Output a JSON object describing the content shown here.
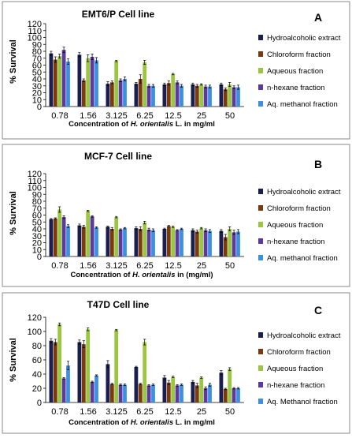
{
  "chart_data": [
    {
      "type": "bar",
      "title": "EMT6/P Cell line",
      "panel_label": "A",
      "ylabel": "% Survival",
      "xlabel_parts": [
        "Concentration of ",
        "H. orientalis",
        " L. in mg/ml"
      ],
      "ylim": [
        0,
        120
      ],
      "yticks": [
        0,
        10,
        20,
        30,
        40,
        50,
        60,
        70,
        80,
        90,
        100,
        110,
        120
      ],
      "grid": false,
      "legend_position": "right",
      "categories": [
        "0.78",
        "1.56",
        "3.125",
        "6.25",
        "12.5",
        "25",
        "50"
      ],
      "series": [
        {
          "name": "Hydroalcoholic extract",
          "color": "#1a1f4f",
          "values": [
            77,
            75,
            33,
            33,
            32,
            32,
            32
          ],
          "errors": [
            3,
            3,
            3,
            2,
            2,
            2,
            2
          ]
        },
        {
          "name": "Chloroform fraction",
          "color": "#7a3a10",
          "values": [
            68,
            38,
            35,
            40,
            34,
            30,
            25
          ],
          "errors": [
            4,
            2,
            2,
            6,
            3,
            2,
            2
          ]
        },
        {
          "name": "Aqueous fraction",
          "color": "#9ac641",
          "values": [
            73,
            70,
            66,
            64,
            47,
            32,
            32
          ],
          "errors": [
            3,
            5,
            1,
            3,
            1,
            1,
            3
          ]
        },
        {
          "name": "n-hexane fraction",
          "color": "#5b3a9e",
          "values": [
            82,
            72,
            38,
            30,
            35,
            29,
            28
          ],
          "errors": [
            4,
            4,
            2,
            2,
            2,
            2,
            2
          ]
        },
        {
          "name": "Aq. methanol fraction",
          "color": "#3d8fe0",
          "values": [
            65,
            67,
            40,
            30,
            30,
            29,
            28
          ],
          "errors": [
            4,
            4,
            3,
            2,
            2,
            2,
            3
          ]
        }
      ]
    },
    {
      "type": "bar",
      "title": "MCF-7 Cell line",
      "panel_label": "B",
      "ylabel": "% Survival",
      "xlabel_parts": [
        "Concentration of ",
        "H. orientalis",
        " in (mg/ml)"
      ],
      "ylim": [
        0,
        120
      ],
      "yticks": [
        0,
        10,
        20,
        30,
        40,
        50,
        60,
        70,
        80,
        90,
        100,
        110,
        120
      ],
      "grid": false,
      "legend_position": "right",
      "categories": [
        "0.78",
        "1.56",
        "3.125",
        "6.25",
        "12.5",
        "25",
        "50"
      ],
      "series": [
        {
          "name": "Hydroalcoholic extract",
          "color": "#1a1f4f",
          "values": [
            54,
            45,
            43,
            41,
            40,
            38,
            37
          ],
          "errors": [
            1,
            2,
            1,
            2,
            1,
            2,
            2
          ]
        },
        {
          "name": "Chloroform fraction",
          "color": "#7a3a10",
          "values": [
            55,
            43,
            40,
            40,
            44,
            36,
            28
          ],
          "errors": [
            1,
            2,
            2,
            3,
            1,
            2,
            4
          ]
        },
        {
          "name": "Aqueous fraction",
          "color": "#9ac641",
          "values": [
            68,
            66,
            57,
            49,
            43,
            41,
            40
          ],
          "errors": [
            4,
            1,
            1,
            2,
            1,
            1,
            3
          ]
        },
        {
          "name": "n-hexane fraction",
          "color": "#5b3a9e",
          "values": [
            57,
            58,
            39,
            39,
            38,
            38,
            35
          ],
          "errors": [
            2,
            1,
            1,
            2,
            1,
            2,
            3
          ]
        },
        {
          "name": "Aq. methanol fraction",
          "color": "#3d8fe0",
          "values": [
            44,
            42,
            41,
            38,
            40,
            37,
            36
          ],
          "errors": [
            2,
            1,
            1,
            2,
            1,
            2,
            3
          ]
        }
      ]
    },
    {
      "type": "bar",
      "title": "T47D Cell line",
      "panel_label": "C",
      "ylabel": "% Survival",
      "xlabel_parts": [
        "Concentration of ",
        "H. orientalis",
        " L. in mg/ml"
      ],
      "ylim": [
        0,
        120
      ],
      "yticks": [
        0,
        20,
        40,
        60,
        80,
        100,
        120
      ],
      "grid": false,
      "legend_position": "right",
      "categories": [
        "0.78",
        "1.56",
        "3.125",
        "6.25",
        "12.5",
        "25",
        "50"
      ],
      "series": [
        {
          "name": "Hydroalcoholic extract",
          "color": "#1a1f4f",
          "values": [
            87,
            85,
            54,
            50,
            35,
            29,
            42
          ],
          "errors": [
            3,
            3,
            5,
            1,
            3,
            2,
            3
          ]
        },
        {
          "name": "Chloroform fraction",
          "color": "#7a3a10",
          "values": [
            85,
            82,
            26,
            26,
            28,
            24,
            19
          ],
          "errors": [
            4,
            5,
            1,
            1,
            3,
            3,
            1
          ]
        },
        {
          "name": "Aqueous fraction",
          "color": "#9ac641",
          "values": [
            110,
            103,
            102,
            85,
            36,
            35,
            47
          ],
          "errors": [
            2,
            2,
            1,
            4,
            1,
            1,
            2
          ]
        },
        {
          "name": "n-hexane fraction",
          "color": "#5b3a9e",
          "values": [
            34,
            29,
            25,
            24,
            24,
            20,
            20
          ],
          "errors": [
            1,
            1,
            1,
            1,
            1,
            2,
            1
          ]
        },
        {
          "name": "Aq. Methanol fraction",
          "color": "#3d8fe0",
          "values": [
            52,
            38,
            25,
            25,
            25,
            25,
            20
          ],
          "errors": [
            6,
            1,
            1,
            1,
            1,
            2,
            1
          ]
        }
      ]
    }
  ]
}
